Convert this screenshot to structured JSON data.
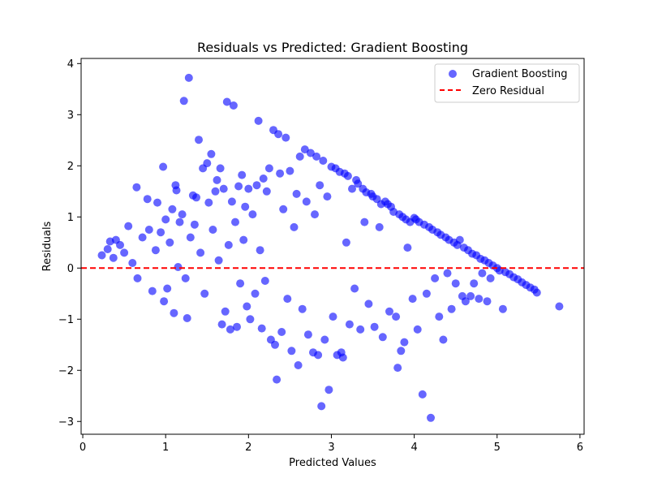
{
  "chart_data": {
    "type": "scatter",
    "title": "Residuals vs Predicted: Gradient Boosting",
    "xlabel": "Predicted Values",
    "ylabel": "Residuals",
    "xlim": [
      -0.02,
      6.05
    ],
    "ylim": [
      -3.25,
      4.1
    ],
    "xticks": [
      0,
      1,
      2,
      3,
      4,
      5,
      6
    ],
    "yticks": [
      -3,
      -2,
      -1,
      0,
      1,
      2,
      3,
      4
    ],
    "grid": false,
    "legend_position": "top-right",
    "colors": {
      "points": "#0000ff",
      "zero_line": "#ff0000"
    },
    "series": [
      {
        "name": "Gradient Boosting",
        "kind": "scatter",
        "points": [
          [
            0.23,
            0.25
          ],
          [
            0.3,
            0.37
          ],
          [
            0.33,
            0.52
          ],
          [
            0.37,
            0.2
          ],
          [
            0.4,
            0.55
          ],
          [
            0.45,
            0.45
          ],
          [
            0.5,
            0.3
          ],
          [
            0.55,
            0.82
          ],
          [
            0.6,
            0.1
          ],
          [
            0.65,
            1.58
          ],
          [
            0.66,
            -0.2
          ],
          [
            0.72,
            0.6
          ],
          [
            0.78,
            1.35
          ],
          [
            0.8,
            0.75
          ],
          [
            0.84,
            -0.45
          ],
          [
            0.88,
            0.35
          ],
          [
            0.9,
            1.28
          ],
          [
            0.94,
            0.7
          ],
          [
            0.97,
            1.98
          ],
          [
            0.98,
            -0.65
          ],
          [
            1.0,
            0.95
          ],
          [
            1.02,
            -0.4
          ],
          [
            1.05,
            0.5
          ],
          [
            1.08,
            1.15
          ],
          [
            1.1,
            -0.88
          ],
          [
            1.12,
            1.62
          ],
          [
            1.13,
            1.52
          ],
          [
            1.15,
            0.02
          ],
          [
            1.17,
            0.9
          ],
          [
            1.2,
            1.05
          ],
          [
            1.22,
            3.27
          ],
          [
            1.24,
            -0.2
          ],
          [
            1.26,
            -0.98
          ],
          [
            1.28,
            3.72
          ],
          [
            1.3,
            0.6
          ],
          [
            1.33,
            1.42
          ],
          [
            1.35,
            0.85
          ],
          [
            1.37,
            1.38
          ],
          [
            1.4,
            2.51
          ],
          [
            1.42,
            0.3
          ],
          [
            1.45,
            1.95
          ],
          [
            1.47,
            -0.5
          ],
          [
            1.5,
            2.05
          ],
          [
            1.52,
            1.28
          ],
          [
            1.55,
            2.23
          ],
          [
            1.57,
            0.75
          ],
          [
            1.6,
            1.5
          ],
          [
            1.62,
            1.72
          ],
          [
            1.64,
            0.15
          ],
          [
            1.66,
            1.95
          ],
          [
            1.68,
            -1.1
          ],
          [
            1.7,
            1.55
          ],
          [
            1.72,
            -0.85
          ],
          [
            1.74,
            3.25
          ],
          [
            1.76,
            0.45
          ],
          [
            1.78,
            -1.2
          ],
          [
            1.8,
            1.3
          ],
          [
            1.82,
            3.18
          ],
          [
            1.84,
            0.9
          ],
          [
            1.86,
            -1.15
          ],
          [
            1.88,
            1.6
          ],
          [
            1.9,
            -0.3
          ],
          [
            1.92,
            1.82
          ],
          [
            1.94,
            0.55
          ],
          [
            1.96,
            1.2
          ],
          [
            1.98,
            -0.75
          ],
          [
            2.0,
            1.55
          ],
          [
            2.02,
            -1.0
          ],
          [
            2.05,
            1.05
          ],
          [
            2.08,
            -0.5
          ],
          [
            2.1,
            1.62
          ],
          [
            2.12,
            2.88
          ],
          [
            2.14,
            0.35
          ],
          [
            2.16,
            -1.18
          ],
          [
            2.18,
            1.75
          ],
          [
            2.2,
            -0.25
          ],
          [
            2.22,
            1.5
          ],
          [
            2.25,
            1.95
          ],
          [
            2.27,
            -1.4
          ],
          [
            2.3,
            2.7
          ],
          [
            2.32,
            -1.5
          ],
          [
            2.34,
            -2.18
          ],
          [
            2.36,
            2.62
          ],
          [
            2.38,
            1.85
          ],
          [
            2.4,
            -1.25
          ],
          [
            2.42,
            1.15
          ],
          [
            2.45,
            2.55
          ],
          [
            2.47,
            -0.6
          ],
          [
            2.5,
            1.9
          ],
          [
            2.52,
            -1.62
          ],
          [
            2.55,
            0.8
          ],
          [
            2.58,
            1.45
          ],
          [
            2.6,
            -1.9
          ],
          [
            2.62,
            2.18
          ],
          [
            2.65,
            -0.8
          ],
          [
            2.68,
            2.32
          ],
          [
            2.7,
            1.3
          ],
          [
            2.72,
            -1.3
          ],
          [
            2.75,
            2.25
          ],
          [
            2.78,
            -1.65
          ],
          [
            2.8,
            1.05
          ],
          [
            2.82,
            2.18
          ],
          [
            2.84,
            -1.7
          ],
          [
            2.86,
            1.62
          ],
          [
            2.88,
            -2.7
          ],
          [
            2.9,
            2.1
          ],
          [
            2.92,
            -1.4
          ],
          [
            2.95,
            1.4
          ],
          [
            2.97,
            -2.38
          ],
          [
            3.0,
            1.98
          ],
          [
            3.02,
            -0.95
          ],
          [
            3.05,
            1.95
          ],
          [
            3.07,
            -1.7
          ],
          [
            3.1,
            1.88
          ],
          [
            3.12,
            -1.65
          ],
          [
            3.14,
            -1.75
          ],
          [
            3.16,
            1.85
          ],
          [
            3.18,
            0.5
          ],
          [
            3.2,
            1.8
          ],
          [
            3.22,
            -1.1
          ],
          [
            3.25,
            1.55
          ],
          [
            3.28,
            -0.4
          ],
          [
            3.3,
            1.72
          ],
          [
            3.32,
            1.65
          ],
          [
            3.35,
            -1.2
          ],
          [
            3.38,
            1.55
          ],
          [
            3.4,
            0.9
          ],
          [
            3.42,
            1.48
          ],
          [
            3.45,
            -0.7
          ],
          [
            3.48,
            1.45
          ],
          [
            3.5,
            1.4
          ],
          [
            3.52,
            -1.15
          ],
          [
            3.55,
            1.35
          ],
          [
            3.58,
            0.8
          ],
          [
            3.6,
            1.25
          ],
          [
            3.62,
            -1.35
          ],
          [
            3.65,
            1.3
          ],
          [
            3.68,
            1.25
          ],
          [
            3.7,
            -0.85
          ],
          [
            3.72,
            1.2
          ],
          [
            3.75,
            1.1
          ],
          [
            3.78,
            -0.95
          ],
          [
            3.8,
            -1.95
          ],
          [
            3.82,
            1.05
          ],
          [
            3.84,
            -1.62
          ],
          [
            3.86,
            1.0
          ],
          [
            3.88,
            -1.45
          ],
          [
            3.9,
            0.95
          ],
          [
            3.92,
            0.4
          ],
          [
            3.95,
            0.9
          ],
          [
            3.98,
            -0.6
          ],
          [
            4.0,
            0.98
          ],
          [
            4.02,
            0.95
          ],
          [
            4.04,
            -1.2
          ],
          [
            4.06,
            0.9
          ],
          [
            4.1,
            -2.47
          ],
          [
            4.12,
            0.85
          ],
          [
            4.15,
            -0.5
          ],
          [
            4.18,
            0.8
          ],
          [
            4.2,
            -2.93
          ],
          [
            4.22,
            0.75
          ],
          [
            4.25,
            -0.2
          ],
          [
            4.28,
            0.7
          ],
          [
            4.3,
            -0.95
          ],
          [
            4.32,
            0.65
          ],
          [
            4.35,
            -1.4
          ],
          [
            4.38,
            0.6
          ],
          [
            4.4,
            -0.1
          ],
          [
            4.42,
            0.55
          ],
          [
            4.45,
            -0.8
          ],
          [
            4.48,
            0.5
          ],
          [
            4.5,
            -0.3
          ],
          [
            4.52,
            0.45
          ],
          [
            4.55,
            0.55
          ],
          [
            4.58,
            -0.55
          ],
          [
            4.6,
            0.4
          ],
          [
            4.62,
            -0.65
          ],
          [
            4.65,
            0.35
          ],
          [
            4.68,
            -0.55
          ],
          [
            4.7,
            0.28
          ],
          [
            4.72,
            -0.3
          ],
          [
            4.75,
            0.25
          ],
          [
            4.78,
            -0.6
          ],
          [
            4.8,
            0.18
          ],
          [
            4.82,
            -0.1
          ],
          [
            4.85,
            0.15
          ],
          [
            4.88,
            -0.65
          ],
          [
            4.9,
            0.1
          ],
          [
            4.92,
            -0.2
          ],
          [
            4.95,
            0.05
          ],
          [
            5.0,
            0.0
          ],
          [
            5.03,
            -0.05
          ],
          [
            5.07,
            -0.8
          ],
          [
            5.1,
            -0.08
          ],
          [
            5.15,
            -0.12
          ],
          [
            5.2,
            -0.18
          ],
          [
            5.25,
            -0.22
          ],
          [
            5.3,
            -0.28
          ],
          [
            5.35,
            -0.33
          ],
          [
            5.4,
            -0.38
          ],
          [
            5.45,
            -0.42
          ],
          [
            5.48,
            -0.48
          ],
          [
            5.75,
            -0.75
          ]
        ]
      },
      {
        "name": "Zero Residual",
        "kind": "hline",
        "y": 0
      }
    ]
  }
}
